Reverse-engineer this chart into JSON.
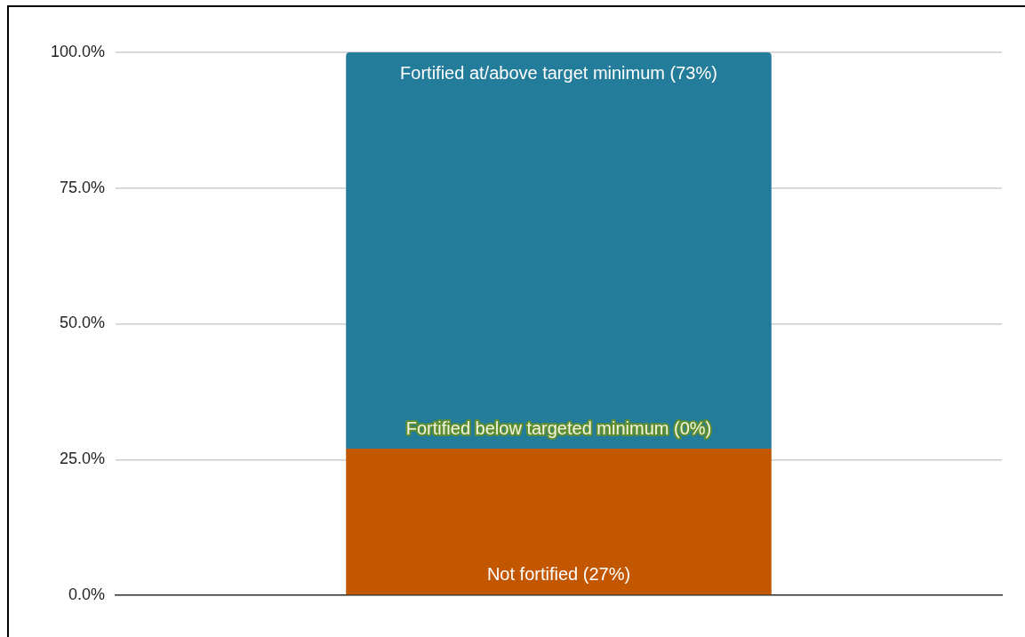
{
  "chart_data": {
    "type": "bar",
    "stacked": true,
    "categories": [
      null
    ],
    "series": [
      {
        "name": "Not fortified",
        "color": "#c25700",
        "values": [
          27
        ],
        "value_labels": [
          "(27%)"
        ]
      },
      {
        "name": "Fortified below targeted minimum",
        "color": "#5f8f2f",
        "values": [
          0
        ],
        "value_labels": [
          "(0%)"
        ]
      },
      {
        "name": "Fortified at/above target minimum",
        "color": "#237c99",
        "values": [
          73
        ],
        "value_labels": [
          "(73%)"
        ]
      }
    ],
    "ylim": [
      0,
      100
    ],
    "yticks": [
      {
        "value": 0,
        "label": "0.0%"
      },
      {
        "value": 25,
        "label": "25.0%"
      },
      {
        "value": 50,
        "label": "50.0%"
      },
      {
        "value": 75,
        "label": "75.0%"
      },
      {
        "value": 100,
        "label": "100.0%"
      }
    ],
    "grid": "y",
    "tick_labels": "y"
  }
}
